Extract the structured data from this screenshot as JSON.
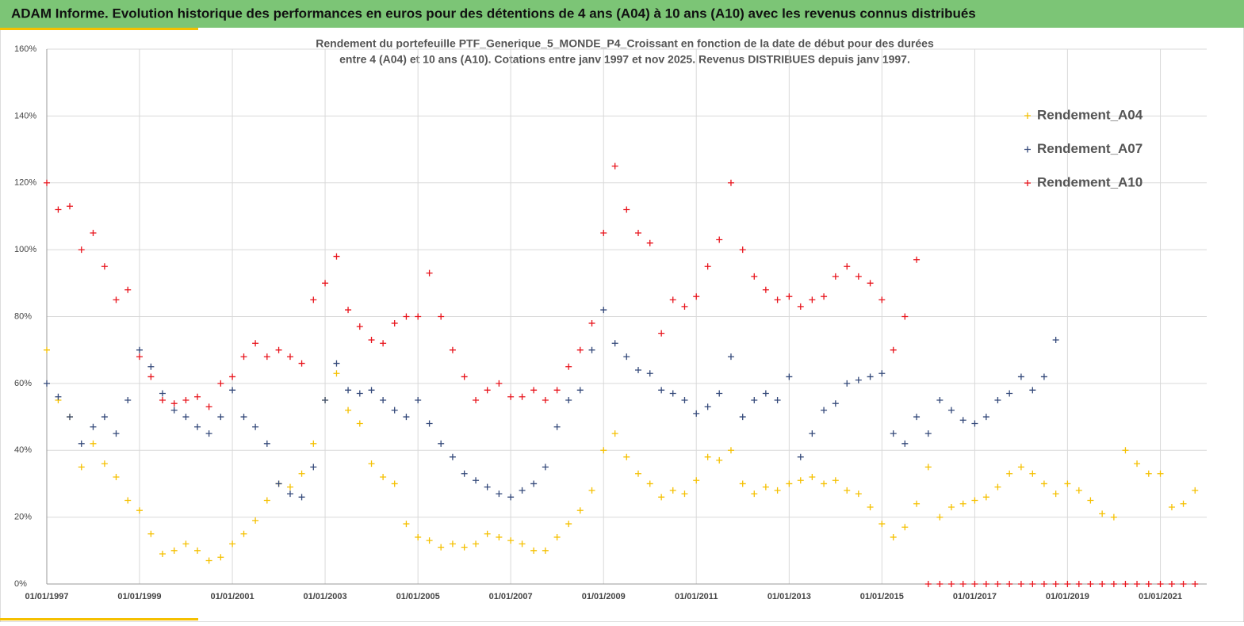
{
  "header": {
    "title": "ADAM Informe. Evolution historique des performances en euros pour des détentions de 4 ans (A04) à 10 ans (A10) avec les revenus connus distribués"
  },
  "chart_data": {
    "type": "scatter",
    "subtitle": [
      "Rendement du portefeuille PTF_Generique_5_MONDE_P4_Croissant  en fonction de la date de début pour des durées",
      "entre 4 (A04) et 10 ans (A10). Cotations entre janv 1997 et nov 2025. Revenus DISTRIBUES depuis janv 1997."
    ],
    "x": [
      "1997-01-01",
      "1997-04-01",
      "1997-07-01",
      "1997-10-01",
      "1998-01-01",
      "1998-04-01",
      "1998-07-01",
      "1998-10-01",
      "1999-01-01",
      "1999-04-01",
      "1999-07-01",
      "1999-10-01",
      "2000-01-01",
      "2000-04-01",
      "2000-07-01",
      "2000-10-01",
      "2001-01-01",
      "2001-04-01",
      "2001-07-01",
      "2001-10-01",
      "2002-01-01",
      "2002-04-01",
      "2002-07-01",
      "2002-10-01",
      "2003-01-01",
      "2003-04-01",
      "2003-07-01",
      "2003-10-01",
      "2004-01-01",
      "2004-04-01",
      "2004-07-01",
      "2004-10-01",
      "2005-01-01",
      "2005-04-01",
      "2005-07-01",
      "2005-10-01",
      "2006-01-01",
      "2006-04-01",
      "2006-07-01",
      "2006-10-01",
      "2007-01-01",
      "2007-04-01",
      "2007-07-01",
      "2007-10-01",
      "2008-01-01",
      "2008-04-01",
      "2008-07-01",
      "2008-10-01",
      "2009-01-01",
      "2009-04-01",
      "2009-07-01",
      "2009-10-01",
      "2010-01-01",
      "2010-04-01",
      "2010-07-01",
      "2010-10-01",
      "2011-01-01",
      "2011-04-01",
      "2011-07-01",
      "2011-10-01",
      "2012-01-01",
      "2012-04-01",
      "2012-07-01",
      "2012-10-01",
      "2013-01-01",
      "2013-04-01",
      "2013-07-01",
      "2013-10-01",
      "2014-01-01",
      "2014-04-01",
      "2014-07-01",
      "2014-10-01",
      "2015-01-01",
      "2015-04-01",
      "2015-07-01",
      "2015-10-01",
      "2016-01-01",
      "2016-04-01",
      "2016-07-01",
      "2016-10-01",
      "2017-01-01",
      "2017-04-01",
      "2017-07-01",
      "2017-10-01",
      "2018-01-01",
      "2018-04-01",
      "2018-07-01",
      "2018-10-01",
      "2019-01-01",
      "2019-04-01",
      "2019-07-01",
      "2019-10-01",
      "2020-01-01",
      "2020-04-01",
      "2020-07-01",
      "2020-10-01",
      "2021-01-01",
      "2021-04-01",
      "2021-07-01",
      "2021-10-01"
    ],
    "series": [
      {
        "name": "Rendement_A04",
        "color": "#f5c000",
        "values": [
          70,
          55,
          50,
          35,
          42,
          36,
          32,
          25,
          22,
          15,
          9,
          10,
          12,
          10,
          7,
          8,
          12,
          15,
          19,
          25,
          30,
          29,
          33,
          42,
          55,
          63,
          52,
          48,
          36,
          32,
          30,
          18,
          14,
          13,
          11,
          12,
          11,
          12,
          15,
          14,
          13,
          12,
          10,
          10,
          14,
          18,
          22,
          28,
          40,
          45,
          38,
          33,
          30,
          26,
          28,
          27,
          31,
          38,
          37,
          40,
          30,
          27,
          29,
          28,
          30,
          31,
          32,
          30,
          31,
          28,
          27,
          23,
          18,
          14,
          17,
          24,
          35,
          20,
          23,
          24,
          25,
          26,
          29,
          33,
          35,
          33,
          30,
          27,
          30,
          28,
          25,
          21,
          20,
          40,
          36,
          33,
          33,
          23,
          24,
          28
        ]
      },
      {
        "name": "Rendement_A07",
        "color": "#34497a",
        "values": [
          60,
          56,
          50,
          42,
          47,
          50,
          45,
          55,
          70,
          65,
          57,
          52,
          50,
          47,
          45,
          50,
          58,
          50,
          47,
          42,
          30,
          27,
          26,
          35,
          55,
          66,
          58,
          57,
          58,
          55,
          52,
          50,
          55,
          48,
          42,
          38,
          33,
          31,
          29,
          27,
          26,
          28,
          30,
          35,
          47,
          55,
          58,
          70,
          82,
          72,
          68,
          64,
          63,
          58,
          57,
          55,
          51,
          53,
          57,
          68,
          50,
          55,
          57,
          55,
          62,
          38,
          45,
          52,
          54,
          60,
          61,
          62,
          63,
          45,
          42,
          50,
          45,
          55,
          52,
          49,
          48,
          50,
          55,
          57,
          62,
          58,
          62,
          73,
          null,
          null,
          null,
          null,
          null,
          null,
          null,
          null,
          null,
          null,
          null,
          null
        ]
      },
      {
        "name": "Rendement_A10",
        "color": "#e8141c",
        "values": [
          120,
          112,
          113,
          100,
          105,
          95,
          85,
          88,
          68,
          62,
          55,
          54,
          55,
          56,
          53,
          60,
          62,
          68,
          72,
          68,
          70,
          68,
          66,
          85,
          90,
          98,
          82,
          77,
          73,
          72,
          78,
          80,
          80,
          93,
          80,
          70,
          62,
          55,
          58,
          60,
          56,
          56,
          58,
          55,
          58,
          65,
          70,
          78,
          105,
          125,
          112,
          105,
          102,
          75,
          85,
          83,
          86,
          95,
          103,
          120,
          100,
          92,
          88,
          85,
          86,
          83,
          85,
          86,
          92,
          95,
          92,
          90,
          85,
          70,
          80,
          97,
          0,
          0,
          0,
          0,
          0,
          0,
          0,
          0,
          0,
          0,
          0,
          0,
          0,
          0,
          0,
          0,
          0,
          0,
          0,
          0,
          0,
          0,
          0,
          0
        ]
      }
    ],
    "xlim": [
      "1997-01-01",
      "2022-01-01"
    ],
    "xticks": [
      {
        "value": "1997-01-01",
        "label": "01/01/1997"
      },
      {
        "value": "1999-01-01",
        "label": "01/01/1999"
      },
      {
        "value": "2001-01-01",
        "label": "01/01/2001"
      },
      {
        "value": "2003-01-01",
        "label": "01/01/2003"
      },
      {
        "value": "2005-01-01",
        "label": "01/01/2005"
      },
      {
        "value": "2007-01-01",
        "label": "01/01/2007"
      },
      {
        "value": "2009-01-01",
        "label": "01/01/2009"
      },
      {
        "value": "2011-01-01",
        "label": "01/01/2011"
      },
      {
        "value": "2013-01-01",
        "label": "01/01/2013"
      },
      {
        "value": "2015-01-01",
        "label": "01/01/2015"
      },
      {
        "value": "2017-01-01",
        "label": "01/01/2017"
      },
      {
        "value": "2019-01-01",
        "label": "01/01/2019"
      },
      {
        "value": "2021-01-01",
        "label": "01/01/2021"
      }
    ],
    "ylim": [
      0,
      160
    ],
    "yticks": [
      {
        "value": 0,
        "label": "0%"
      },
      {
        "value": 20,
        "label": "20%"
      },
      {
        "value": 40,
        "label": "40%"
      },
      {
        "value": 60,
        "label": "60%"
      },
      {
        "value": 80,
        "label": "80%"
      },
      {
        "value": 100,
        "label": "100%"
      },
      {
        "value": 120,
        "label": "120%"
      },
      {
        "value": 140,
        "label": "140%"
      },
      {
        "value": 160,
        "label": "160%"
      }
    ],
    "grid": true,
    "legend": "top-right"
  }
}
